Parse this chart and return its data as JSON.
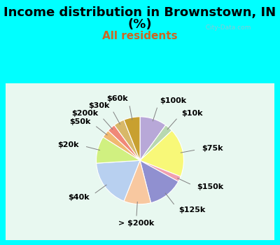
{
  "title_line1": "Income distribution in Brownstown, IN",
  "title_line2": "(%)",
  "subtitle": "All residents",
  "bg_color": "#00FFFF",
  "chart_bg_color": "#d8f0e8",
  "labels": [
    "$100k",
    "$10k",
    "$75k",
    "$150k",
    "$125k",
    "> $200k",
    "$40k",
    "$20k",
    "$50k",
    "$200k",
    "$30k",
    "$60k"
  ],
  "values": [
    10,
    3,
    18,
    2,
    13,
    10,
    18,
    10,
    3,
    3,
    4,
    6
  ],
  "colors": [
    "#b8a8d8",
    "#b8d8b0",
    "#f8f878",
    "#f0a0b0",
    "#9090d0",
    "#f8c8a0",
    "#b8d0f0",
    "#d0f080",
    "#f0b870",
    "#f08878",
    "#d8b868",
    "#c8a030"
  ],
  "watermark": "  City-Data.com",
  "title_fontsize": 13,
  "subtitle_fontsize": 11,
  "subtitle_color": "#cc6622",
  "label_fontsize": 8
}
